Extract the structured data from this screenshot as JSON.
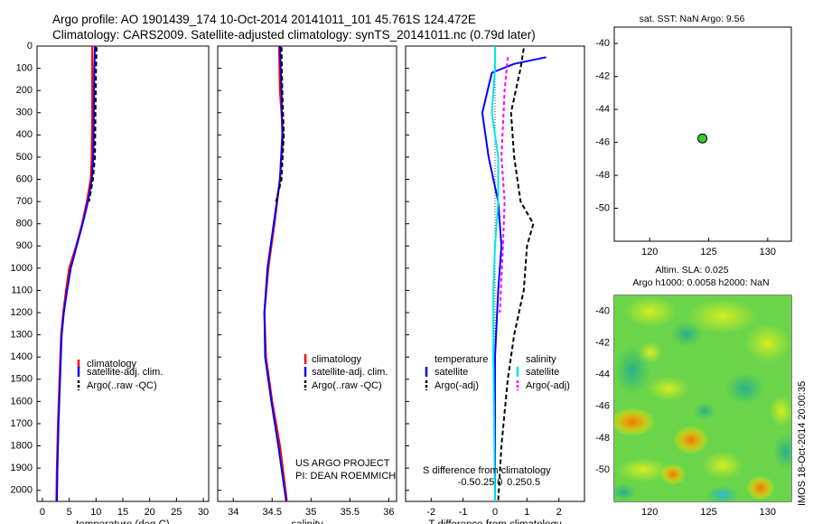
{
  "header": {
    "line1": "Argo profile: AO 1901439_174 10-Oct-2014 20141011_101 45.761S 124.472E",
    "line2": "Climatology: CARS2009. Satellite-adjusted climatology: synTS_20141011.nc (0.79d later)"
  },
  "colors": {
    "climatology": "#ff0000",
    "satellite": "#0000ff",
    "argo": "#000000",
    "sal_satellite": "#00e5ee",
    "sal_argo": "#ff00ff",
    "marker": "#33cc33"
  },
  "credits": {
    "project": "US ARGO PROJECT",
    "pi": "PI: DEAN ROEMMICH",
    "stamp": "IMOS 18-Oct-2014 20:00:35"
  },
  "chart_data": [
    {
      "type": "line",
      "xlabel": "temperature (deg C)",
      "ylim": [
        2050,
        0
      ],
      "xlim": [
        -1,
        31
      ],
      "xticks": [
        0,
        5,
        10,
        15,
        20,
        25,
        30
      ],
      "yticks": [
        0,
        100,
        200,
        300,
        400,
        500,
        600,
        700,
        800,
        900,
        1000,
        1100,
        1200,
        1300,
        1400,
        1500,
        1600,
        1700,
        1800,
        1900,
        2000
      ],
      "legend": [
        "climatology",
        "satellite-adj. clim.",
        "Argo(..raw -QC)"
      ],
      "series": [
        {
          "name": "climatology",
          "points": [
            [
              9.3,
              0
            ],
            [
              9.3,
              100
            ],
            [
              9.3,
              300
            ],
            [
              9.2,
              500
            ],
            [
              9.0,
              600
            ],
            [
              8.3,
              700
            ],
            [
              7.4,
              800
            ],
            [
              6.3,
              900
            ],
            [
              5.0,
              1000
            ],
            [
              4.4,
              1100
            ],
            [
              3.9,
              1200
            ],
            [
              3.5,
              1300
            ],
            [
              3.2,
              1500
            ],
            [
              2.9,
              1700
            ],
            [
              2.7,
              1900
            ],
            [
              2.6,
              2050
            ]
          ]
        },
        {
          "name": "satellite-adj. clim.",
          "points": [
            [
              9.8,
              0
            ],
            [
              9.7,
              100
            ],
            [
              9.6,
              300
            ],
            [
              9.5,
              500
            ],
            [
              9.2,
              600
            ],
            [
              8.5,
              700
            ],
            [
              7.5,
              800
            ],
            [
              6.4,
              900
            ],
            [
              5.3,
              1000
            ],
            [
              4.6,
              1100
            ],
            [
              4.0,
              1200
            ],
            [
              3.6,
              1300
            ],
            [
              3.3,
              1500
            ],
            [
              3.0,
              1700
            ],
            [
              2.8,
              1900
            ],
            [
              2.7,
              2050
            ]
          ]
        },
        {
          "name": "Argo(..raw -QC)",
          "points": [
            [
              10.1,
              5
            ],
            [
              10.0,
              100
            ],
            [
              9.9,
              300
            ],
            [
              9.8,
              500
            ],
            [
              9.4,
              600
            ],
            [
              8.7,
              700
            ]
          ]
        }
      ]
    },
    {
      "type": "line",
      "xlabel": "salinity",
      "ylim": [
        2050,
        0
      ],
      "xlim": [
        33.8,
        36.1
      ],
      "xticks": [
        34,
        34.5,
        35,
        35.5,
        36
      ],
      "legend": [
        "climatology",
        "satellite-adj. clim.",
        "Argo(..raw -QC)"
      ],
      "series": [
        {
          "name": "climatology",
          "points": [
            [
              34.59,
              0
            ],
            [
              34.6,
              200
            ],
            [
              34.64,
              400
            ],
            [
              34.6,
              600
            ],
            [
              34.53,
              800
            ],
            [
              34.45,
              1000
            ],
            [
              34.4,
              1200
            ],
            [
              34.42,
              1400
            ],
            [
              34.5,
              1600
            ],
            [
              34.6,
              1800
            ],
            [
              34.69,
              2050
            ]
          ]
        },
        {
          "name": "satellite-adj. clim.",
          "points": [
            [
              34.6,
              0
            ],
            [
              34.62,
              200
            ],
            [
              34.63,
              400
            ],
            [
              34.6,
              600
            ],
            [
              34.52,
              800
            ],
            [
              34.44,
              1000
            ],
            [
              34.4,
              1200
            ],
            [
              34.41,
              1400
            ],
            [
              34.49,
              1600
            ],
            [
              34.58,
              1800
            ],
            [
              34.68,
              2050
            ]
          ]
        },
        {
          "name": "Argo(..raw -QC)",
          "points": [
            [
              34.62,
              5
            ],
            [
              34.63,
              200
            ],
            [
              34.65,
              400
            ],
            [
              34.62,
              600
            ],
            [
              34.55,
              700
            ]
          ]
        }
      ]
    },
    {
      "type": "line",
      "xlabel": "T difference from climatology",
      "title2": "S difference from climatology",
      "ylim": [
        2050,
        0
      ],
      "xlim": [
        -2.8,
        2.8
      ],
      "xticks": [
        -2,
        -1,
        0,
        1,
        2
      ],
      "top_ticks": [
        "-0.5",
        "-0.25",
        "0",
        "0.25",
        "0.5"
      ],
      "legend_headers": [
        "temperature",
        "salinity"
      ],
      "legend": [
        "satellite",
        "Argo(-adj)",
        "satellite",
        "Argo(-adj)"
      ],
      "series": [
        {
          "name": "temperature satellite",
          "points": [
            [
              1.6,
              50
            ],
            [
              0.6,
              80
            ],
            [
              -0.1,
              120
            ],
            [
              -0.4,
              300
            ],
            [
              -0.2,
              500
            ],
            [
              0.1,
              700
            ],
            [
              0.2,
              900
            ],
            [
              0.1,
              1100
            ],
            [
              0.0,
              1400
            ],
            [
              0.0,
              2050
            ]
          ]
        },
        {
          "name": "temperature Argo(-adj)",
          "points": [
            [
              0.9,
              10
            ],
            [
              0.8,
              100
            ],
            [
              0.5,
              300
            ],
            [
              0.6,
              500
            ],
            [
              0.8,
              700
            ],
            [
              1.2,
              800
            ],
            [
              1.0,
              900
            ],
            [
              0.9,
              1100
            ],
            [
              0.6,
              1300
            ],
            [
              0.4,
              1500
            ],
            [
              0.2,
              1800
            ],
            [
              0.1,
              2050
            ]
          ]
        },
        {
          "name": "salinity satellite",
          "points": [
            [
              0.0,
              0
            ],
            [
              0.0,
              100
            ],
            [
              -0.1,
              300
            ],
            [
              0.1,
              500
            ],
            [
              0.1,
              700
            ],
            [
              0.0,
              900
            ],
            [
              -0.05,
              1100
            ],
            [
              -0.05,
              1400
            ],
            [
              0.0,
              2050
            ]
          ]
        },
        {
          "name": "salinity Argo(-adj)",
          "points": [
            [
              0.4,
              50
            ],
            [
              0.3,
              200
            ],
            [
              0.2,
              500
            ],
            [
              0.3,
              700
            ],
            [
              0.25,
              900
            ],
            [
              0.15,
              1200
            ]
          ]
        }
      ]
    },
    {
      "type": "scatter",
      "title": "sat. SST: NaN Argo: 9.56",
      "xlim": [
        117,
        132
      ],
      "ylim": [
        -52,
        -39
      ],
      "xticks": [
        120,
        125,
        130
      ],
      "yticks": [
        -40,
        -42,
        -44,
        -46,
        -48,
        -50
      ],
      "points": [
        [
          124.47,
          -45.76
        ]
      ]
    },
    {
      "type": "heatmap",
      "title": "Altim. SLA: 0.025",
      "subtitle": "Argo h1000: 0.0058 h2000: NaN",
      "xlim": [
        117,
        132
      ],
      "ylim": [
        -52,
        -39
      ],
      "xticks": [
        120,
        125,
        130
      ],
      "yticks": [
        -40,
        -42,
        -44,
        -46,
        -48,
        -50
      ],
      "points": [
        [
          124.47,
          -45.76
        ]
      ]
    }
  ]
}
